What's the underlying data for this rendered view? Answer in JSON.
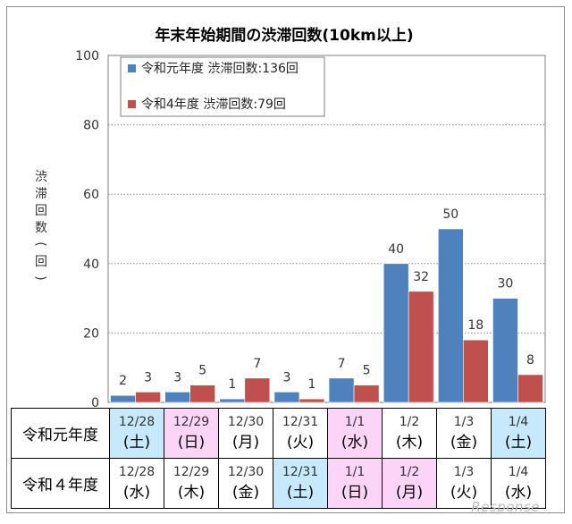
{
  "chart_data": {
    "type": "bar",
    "title": "年末年始期間の渋滞回数(10km以上)",
    "ylabel": "渋滞回数(回)",
    "xlabel": "",
    "ylim": [
      0,
      100
    ],
    "yticks": [
      0,
      20,
      40,
      60,
      80,
      100
    ],
    "categories": [
      "12/28",
      "12/29",
      "12/30",
      "12/31",
      "1/1",
      "1/2",
      "1/3",
      "1/4"
    ],
    "series": [
      {
        "name": "令和元年度 渋滞回数:136回",
        "color": "#4f81bd",
        "values": [
          2,
          3,
          1,
          3,
          7,
          40,
          50,
          30
        ]
      },
      {
        "name": "令和4年度 渋滞回数:79回",
        "color": "#c0504d",
        "values": [
          3,
          5,
          7,
          1,
          5,
          32,
          18,
          8
        ]
      }
    ],
    "legend_position": "top-left",
    "grid": "dotted horizontal"
  },
  "table": {
    "rows": [
      {
        "label": "令和元年度",
        "cells": [
          {
            "date": "12/28",
            "day": "(土)",
            "bg": "blue"
          },
          {
            "date": "12/29",
            "day": "(日)",
            "bg": "pink"
          },
          {
            "date": "12/30",
            "day": "(月)",
            "bg": "white"
          },
          {
            "date": "12/31",
            "day": "(火)",
            "bg": "white"
          },
          {
            "date": "1/1",
            "day": "(水)",
            "bg": "pink"
          },
          {
            "date": "1/2",
            "day": "(木)",
            "bg": "white"
          },
          {
            "date": "1/3",
            "day": "(金)",
            "bg": "white"
          },
          {
            "date": "1/4",
            "day": "(土)",
            "bg": "blue"
          }
        ]
      },
      {
        "label": "令和４年度",
        "cells": [
          {
            "date": "12/28",
            "day": "(水)",
            "bg": "white"
          },
          {
            "date": "12/29",
            "day": "(木)",
            "bg": "white"
          },
          {
            "date": "12/30",
            "day": "(金)",
            "bg": "white"
          },
          {
            "date": "12/31",
            "day": "(土)",
            "bg": "blue"
          },
          {
            "date": "1/1",
            "day": "(日)",
            "bg": "pink"
          },
          {
            "date": "1/2",
            "day": "(月)",
            "bg": "pink"
          },
          {
            "date": "1/3",
            "day": "(火)",
            "bg": "white"
          },
          {
            "date": "1/4",
            "day": "(水)",
            "bg": "white"
          }
        ]
      }
    ]
  },
  "watermark": "Response"
}
